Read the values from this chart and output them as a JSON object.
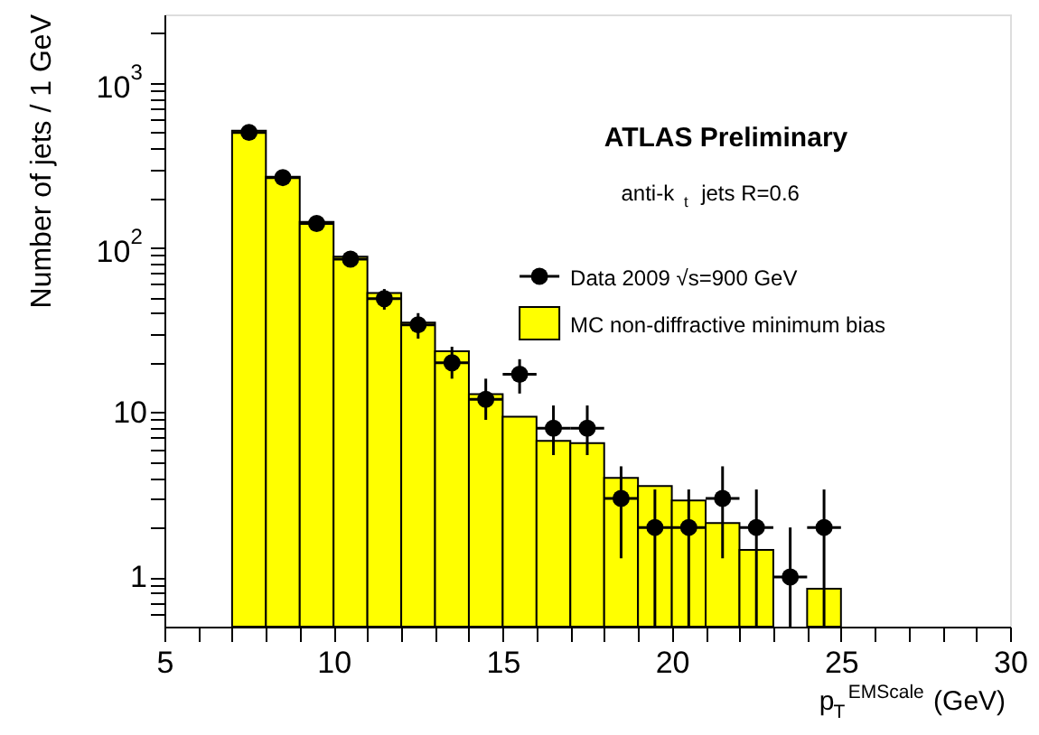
{
  "chart_data": {
    "type": "histogram",
    "xlabel": "p$_{T}$$^{EMScale}$ (GeV)",
    "ylabel": "Number of jets / 1 GeV",
    "annotations": [
      "ATLAS Preliminary",
      "anti-k$_{t}$ jets R=0.6"
    ],
    "log": "y",
    "grid": false,
    "legend": "top right",
    "xlim": [
      5,
      30
    ],
    "ylim": [
      0.5,
      2600
    ],
    "xticks": [
      5,
      {
        "value": 6,
        "label": null
      },
      {
        "value": 7,
        "label": null
      },
      {
        "value": 8,
        "label": null
      },
      {
        "value": 9,
        "label": null
      },
      10,
      {
        "value": 11,
        "label": null
      },
      {
        "value": 12,
        "label": null
      },
      {
        "value": 13,
        "label": null
      },
      {
        "value": 14,
        "label": null
      },
      15,
      {
        "value": 16,
        "label": null
      },
      {
        "value": 17,
        "label": null
      },
      {
        "value": 18,
        "label": null
      },
      {
        "value": 19,
        "label": null
      },
      20,
      {
        "value": 21,
        "label": null
      },
      {
        "value": 22,
        "label": null
      },
      {
        "value": 23,
        "label": null
      },
      {
        "value": 24,
        "label": null
      },
      25,
      {
        "value": 26,
        "label": null
      },
      {
        "value": 27,
        "label": null
      },
      {
        "value": 28,
        "label": null
      },
      {
        "value": 29,
        "label": null
      },
      30
    ],
    "yticks": [
      {
        "value": 0.6,
        "label": null
      },
      {
        "value": 0.7,
        "label": null
      },
      {
        "value": 0.8,
        "label": null
      },
      {
        "value": 0.9,
        "label": null
      },
      1,
      {
        "value": 2,
        "label": null
      },
      {
        "value": 3,
        "label": null
      },
      {
        "value": 4,
        "label": null
      },
      {
        "value": 5,
        "label": null
      },
      {
        "value": 6,
        "label": null
      },
      {
        "value": 7,
        "label": null
      },
      {
        "value": 8,
        "label": null
      },
      {
        "value": 9,
        "label": null
      },
      10,
      {
        "value": 20,
        "label": null
      },
      {
        "value": 30,
        "label": null
      },
      {
        "value": 40,
        "label": null
      },
      {
        "value": 50,
        "label": null
      },
      {
        "value": 60,
        "label": null
      },
      {
        "value": 70,
        "label": null
      },
      {
        "value": 80,
        "label": null
      },
      {
        "value": 90,
        "label": null
      },
      {
        "value": 100,
        "label": "10$^{2}$"
      },
      {
        "value": 200,
        "label": null
      },
      {
        "value": 300,
        "label": null
      },
      {
        "value": 400,
        "label": null
      },
      {
        "value": 500,
        "label": null
      },
      {
        "value": 600,
        "label": null
      },
      {
        "value": 700,
        "label": null
      },
      {
        "value": 800,
        "label": null
      },
      {
        "value": 900,
        "label": null
      },
      {
        "value": 1000,
        "label": "10$^{3}$"
      },
      {
        "value": 2000,
        "label": null
      }
    ],
    "series": [
      {
        "name": "Data 2009 √s=900 GeV",
        "type": "scatter",
        "color": "#000000",
        "marker": "circle",
        "x": [
          7.5,
          8.5,
          9.5,
          10.5,
          11.5,
          12.5,
          13.5,
          14.5,
          15.5,
          16.5,
          17.5,
          18.5,
          19.5,
          20.5,
          21.5,
          22.5,
          23.5,
          24.5
        ],
        "values": [
          500,
          266,
          140,
          85,
          49,
          34,
          20,
          12,
          17,
          8,
          8,
          3,
          2,
          2,
          3,
          2,
          1,
          2
        ],
        "errors": [
          [
            478,
            522
          ],
          [
            250,
            282
          ],
          [
            128,
            152
          ],
          [
            76,
            94
          ],
          [
            42,
            56
          ],
          [
            28,
            40
          ],
          [
            16,
            25
          ],
          [
            9,
            16
          ],
          [
            13,
            21
          ],
          [
            5.5,
            11
          ],
          [
            5.5,
            11
          ],
          [
            1.3,
            4.7
          ],
          [
            0.5,
            3.4
          ],
          [
            0.5,
            3.4
          ],
          [
            1.3,
            4.7
          ],
          [
            0.5,
            3.4
          ],
          [
            0.5,
            2
          ],
          [
            0.5,
            3.4
          ]
        ],
        "xerrors": [
          0.5,
          0.5,
          0.5,
          0.5,
          0.5,
          0.5,
          0.5,
          0.5,
          0.5,
          0.5,
          0.5,
          0.5,
          0.5,
          0.5,
          0.5,
          0.5,
          0.5,
          0.5
        ]
      },
      {
        "name": "MC non-diffractive minimum bias",
        "type": "histogram",
        "color": "#ffff00",
        "bins": [
          7,
          8,
          9,
          10,
          11,
          12,
          13,
          14,
          15,
          16,
          17,
          18,
          19,
          20,
          21,
          22,
          23,
          24,
          25
        ],
        "values": [
          512,
          269,
          143,
          88,
          53,
          35,
          23.5,
          12.9,
          9.4,
          6.7,
          6.5,
          4.0,
          3.57,
          2.92,
          2.13,
          1.46,
          null,
          0.85
        ]
      }
    ]
  }
}
